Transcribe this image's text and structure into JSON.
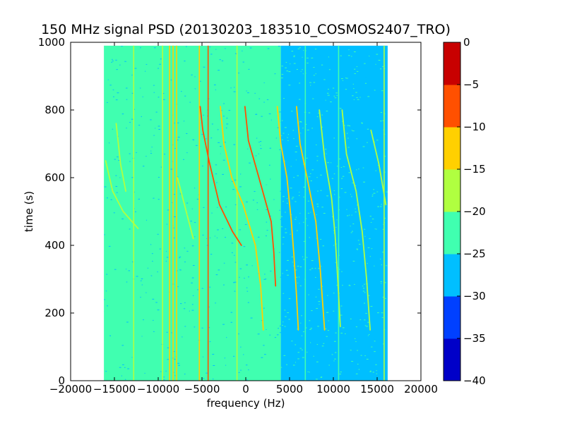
{
  "chart_data": {
    "type": "heatmap",
    "title": "150 MHz signal PSD (20130203_183510_COSMOS2407_TRO)",
    "xlabel": "frequency (Hz)",
    "ylabel": "time (s)",
    "xlim": [
      -20000,
      20000
    ],
    "ylim": [
      0,
      1000
    ],
    "data_extent": {
      "x": [
        -16200,
        16200
      ],
      "y": [
        0,
        990
      ]
    },
    "x_ticks": [
      {
        "value": -20000,
        "label": "−20000"
      },
      {
        "value": -15000,
        "label": "−15000"
      },
      {
        "value": -10000,
        "label": "−10000"
      },
      {
        "value": -5000,
        "label": "−5000"
      },
      {
        "value": 0,
        "label": "0"
      },
      {
        "value": 5000,
        "label": "5000"
      },
      {
        "value": 10000,
        "label": "10000"
      },
      {
        "value": 15000,
        "label": "15000"
      },
      {
        "value": 20000,
        "label": "20000"
      }
    ],
    "y_ticks": [
      {
        "value": 0,
        "label": "0"
      },
      {
        "value": 200,
        "label": "200"
      },
      {
        "value": 400,
        "label": "400"
      },
      {
        "value": 600,
        "label": "600"
      },
      {
        "value": 800,
        "label": "800"
      },
      {
        "value": 1000,
        "label": "1000"
      }
    ],
    "colorbar": {
      "levels": [
        -40,
        -35,
        -30,
        -25,
        -20,
        -15,
        -10,
        -5,
        0
      ],
      "labels": [
        "−40",
        "−35",
        "−30",
        "−25",
        "−20",
        "−15",
        "−10",
        "−5",
        "0"
      ],
      "colors": [
        "#0000c8",
        "#0040ff",
        "#00bfff",
        "#40ffb0",
        "#b0ff40",
        "#ffd000",
        "#ff5000",
        "#c80000"
      ]
    },
    "background_bands": [
      {
        "x": [
          -16200,
          4000
        ],
        "level": -25
      },
      {
        "x": [
          4000,
          16200
        ],
        "level": -30
      }
    ],
    "vertical_lines": [
      {
        "x": -12800,
        "level": -20
      },
      {
        "x": -9500,
        "level": -20
      },
      {
        "x": -8700,
        "level": -15
      },
      {
        "x": -8300,
        "level": -15
      },
      {
        "x": -7900,
        "level": -15
      },
      {
        "x": -5300,
        "level": -15
      },
      {
        "x": -4300,
        "level": -10
      },
      {
        "x": -1000,
        "level": -20
      },
      {
        "x": 6800,
        "level": -25
      },
      {
        "x": 10600,
        "level": -25
      },
      {
        "x": 15800,
        "level": -20
      }
    ],
    "drift_tracks": [
      {
        "points": [
          [
            -16000,
            650
          ],
          [
            -15200,
            560
          ],
          [
            -14000,
            500
          ],
          [
            -12300,
            450
          ]
        ],
        "level": -20
      },
      {
        "points": [
          [
            -14800,
            760
          ],
          [
            -14300,
            640
          ],
          [
            -13700,
            560
          ]
        ],
        "level": -20
      },
      {
        "points": [
          [
            -5200,
            810
          ],
          [
            -4900,
            740
          ],
          [
            -4200,
            650
          ],
          [
            -3000,
            520
          ],
          [
            -1500,
            440
          ],
          [
            -500,
            400
          ]
        ],
        "level": -10
      },
      {
        "points": [
          [
            -2900,
            810
          ],
          [
            -2500,
            700
          ],
          [
            -1600,
            600
          ],
          [
            -300,
            520
          ],
          [
            1100,
            400
          ],
          [
            1700,
            280
          ],
          [
            2000,
            150
          ]
        ],
        "level": -15
      },
      {
        "points": [
          [
            -100,
            810
          ],
          [
            300,
            710
          ],
          [
            1500,
            600
          ],
          [
            2900,
            470
          ],
          [
            3200,
            380
          ],
          [
            3400,
            280
          ]
        ],
        "level": -10
      },
      {
        "points": [
          [
            3600,
            810
          ],
          [
            4000,
            700
          ],
          [
            4700,
            600
          ],
          [
            5200,
            470
          ],
          [
            5500,
            370
          ],
          [
            5800,
            250
          ],
          [
            6000,
            150
          ]
        ],
        "level": -15
      },
      {
        "points": [
          [
            5800,
            810
          ],
          [
            6200,
            700
          ],
          [
            7000,
            600
          ],
          [
            8000,
            470
          ],
          [
            8500,
            330
          ],
          [
            9000,
            150
          ]
        ],
        "level": -15
      },
      {
        "points": [
          [
            8400,
            800
          ],
          [
            9000,
            660
          ],
          [
            9800,
            540
          ],
          [
            10200,
            430
          ],
          [
            10500,
            300
          ],
          [
            10800,
            160
          ]
        ],
        "level": -20
      },
      {
        "points": [
          [
            11000,
            800
          ],
          [
            11500,
            670
          ],
          [
            12600,
            560
          ],
          [
            13300,
            440
          ],
          [
            13800,
            300
          ],
          [
            14200,
            150
          ]
        ],
        "level": -20
      },
      {
        "points": [
          [
            -7800,
            600
          ],
          [
            -7000,
            520
          ],
          [
            -6000,
            420
          ]
        ],
        "level": -20
      },
      {
        "points": [
          [
            14300,
            740
          ],
          [
            15200,
            640
          ],
          [
            16000,
            520
          ]
        ],
        "level": -20
      }
    ]
  }
}
